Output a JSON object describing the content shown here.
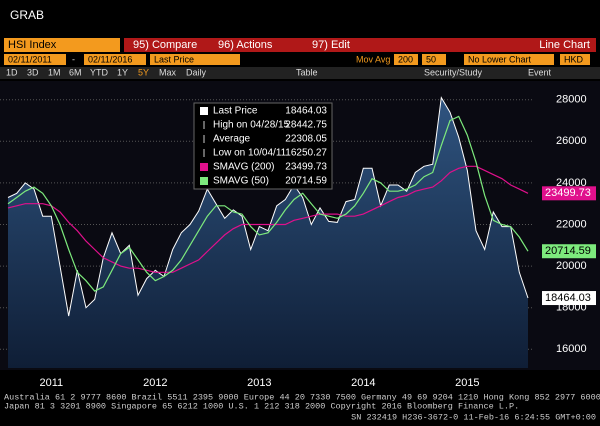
{
  "header": {
    "title": "GRAB"
  },
  "toolbar": {
    "security": "HSI Index",
    "buttons": [
      "95) Compare",
      "96) Actions",
      "97) Edit"
    ],
    "view": "Line Chart",
    "start": "02/11/2011",
    "separator": "-",
    "end": "02/11/2016",
    "field": "Last Price",
    "study": "Mov Avg",
    "periods": [
      200,
      50
    ],
    "lower": "No Lower Chart",
    "currency": "HKD",
    "ranges": [
      "1D",
      "3D",
      "1M",
      "6M",
      "YTD",
      "1Y",
      "5Y",
      "Max"
    ],
    "frequency": "Daily",
    "table": "Table",
    "study_button": "Security/Study",
    "event": "Event"
  },
  "footer": [
    "Australia 61 2 9777 8600 Brazil 5511 2395 9000 Europe 44 20 7330 7500 Germany 49 69 9204 1210 Hong Kong 852 2977 6000",
    "Japan 81 3 3201 8900       Singapore 65 6212 1000       U.S. 1 212 318 2000        Copyright 2016 Bloomberg Finance L.P.",
    "SN 232419 H236-3672-0 11-Feb-16  6:24:55 GMT+0:00"
  ],
  "chart_data": {
    "type": "line",
    "categories": [
      null,
      null,
      null,
      null,
      null,
      "2011",
      null,
      null,
      null,
      null,
      null,
      null,
      null,
      null,
      null,
      null,
      null,
      "2012",
      null,
      null,
      null,
      null,
      null,
      null,
      null,
      null,
      null,
      null,
      null,
      "2013",
      null,
      null,
      null,
      null,
      null,
      null,
      null,
      null,
      null,
      null,
      null,
      "2014",
      null,
      null,
      null,
      null,
      null,
      null,
      null,
      null,
      null,
      null,
      null,
      "2015",
      null,
      null,
      null,
      null,
      null,
      null,
      null
    ],
    "series": [
      {
        "name": "Last Price",
        "color": "#ffffff",
        "values": [
          23300,
          23500,
          24000,
          23700,
          22400,
          22400,
          20000,
          17600,
          19800,
          18000,
          18400,
          20400,
          21600,
          20600,
          21000,
          18600,
          19400,
          19800,
          19500,
          20800,
          21600,
          22000,
          22650,
          23700,
          23000,
          22300,
          22700,
          22400,
          20800,
          21900,
          21700,
          22900,
          23200,
          23900,
          23300,
          22000,
          22800,
          22150,
          22100,
          23100,
          23200,
          24700,
          24700,
          22900,
          23900,
          23900,
          23600,
          24500,
          24800,
          24900,
          28100,
          27400,
          26200,
          24600,
          21700,
          20800,
          22600,
          21900,
          21900,
          19700,
          18464.03
        ]
      },
      {
        "name": "SMAVG (200)",
        "color": "#e0108c",
        "values": [
          22800,
          22900,
          23000,
          23000,
          23000,
          22900,
          22600,
          22100,
          21700,
          21200,
          20800,
          20400,
          20200,
          20000,
          19900,
          19900,
          19800,
          19700,
          19700,
          19700,
          19900,
          20100,
          20300,
          20700,
          21100,
          21500,
          21800,
          22000,
          22000,
          22000,
          22000,
          22000,
          22000,
          22200,
          22300,
          22400,
          22500,
          22500,
          22500,
          22400,
          22400,
          22500,
          22700,
          22900,
          23100,
          23300,
          23400,
          23600,
          23700,
          23800,
          24100,
          24500,
          24700,
          24800,
          24800,
          24600,
          24400,
          24200,
          23900,
          23700,
          23499.73
        ]
      },
      {
        "name": "SMAVG (50)",
        "color": "#7dea7d",
        "values": [
          23000,
          23300,
          23600,
          23800,
          23500,
          22900,
          22000,
          20800,
          19700,
          19300,
          18800,
          19000,
          19800,
          20600,
          20900,
          20300,
          19700,
          19300,
          19500,
          19800,
          20300,
          21000,
          21700,
          22400,
          22900,
          22900,
          22600,
          22500,
          21900,
          21500,
          21600,
          22100,
          22700,
          23200,
          23500,
          23000,
          22500,
          22400,
          22300,
          22500,
          22900,
          23500,
          24200,
          24000,
          23600,
          23600,
          23700,
          23900,
          24300,
          24500,
          25800,
          27000,
          27200,
          26300,
          25000,
          23400,
          22200,
          22000,
          21900,
          21400,
          20714.59
        ]
      }
    ],
    "stats": [
      {
        "label": "High on 04/28/15",
        "value": 28442.75
      },
      {
        "label": "Average",
        "value": 22308.05
      },
      {
        "label": "Low on 10/04/11",
        "value": 16250.27
      }
    ],
    "ylim": [
      15100,
      28900
    ],
    "yticks": [
      16000,
      18000,
      20000,
      22000,
      24000,
      26000,
      28000
    ],
    "grid": true
  }
}
